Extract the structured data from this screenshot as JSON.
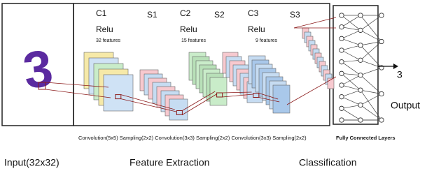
{
  "input": {
    "digit": "3",
    "label": "Input(32x32)"
  },
  "feature_extraction": {
    "layers": [
      {
        "name": "C1",
        "activation": "Relu",
        "features": "32 features"
      },
      {
        "name": "S1"
      },
      {
        "name": "C2",
        "activation": "Relu",
        "features": "15 features"
      },
      {
        "name": "S2"
      },
      {
        "name": "C3",
        "activation": "Relu",
        "features": "9 features"
      },
      {
        "name": "S3"
      }
    ],
    "caption": "Convolution(5x5) Sampling(2x2) Convolution(3x3) Sampling(2x2) Convolution(3x3) Sampling(2x2)",
    "label": "Feature Extraction"
  },
  "classification": {
    "caption": "Fully Connected Layers",
    "label": "Classification"
  },
  "output": {
    "value": "3",
    "label": "Output"
  }
}
